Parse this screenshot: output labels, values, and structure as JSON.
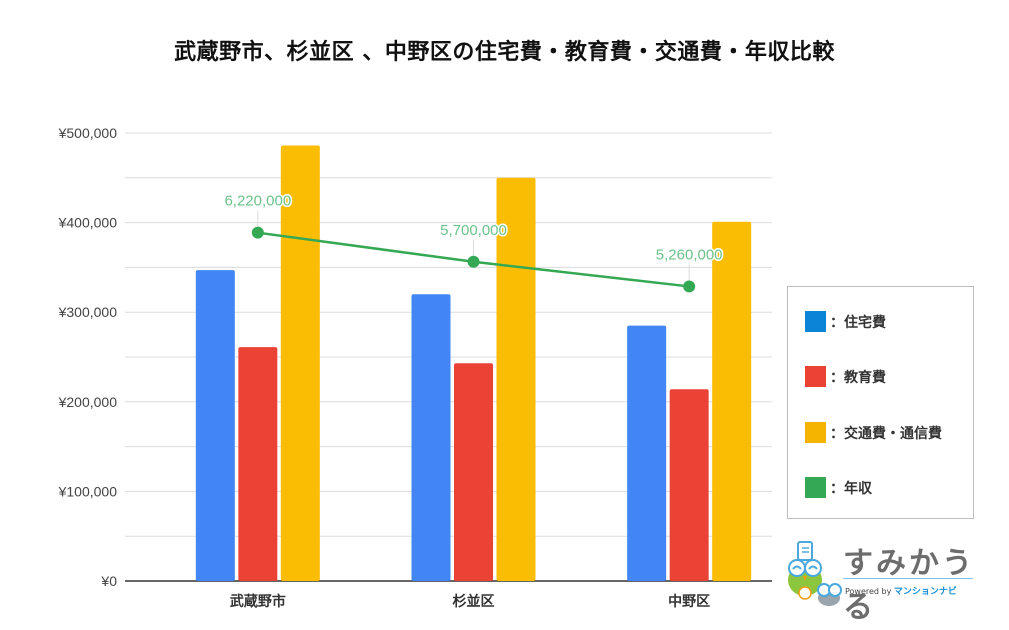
{
  "title": "武蔵野市、杉並区 、中野区の住宅費・教育費・交通費・年収比較",
  "chart_data": {
    "type": "bar",
    "title": "武蔵野市、杉並区 、中野区の住宅費・教育費・交通費・年収比較",
    "xlabel": "",
    "ylabel": "",
    "categories": [
      "武蔵野市",
      "杉並区",
      "中野区"
    ],
    "ylim": [
      0,
      500000
    ],
    "yticks": [
      "¥0",
      "¥100,000",
      "¥200,000",
      "¥300,000",
      "¥400,000",
      "¥500,000"
    ],
    "grid": true,
    "legend_position": "right",
    "series": [
      {
        "name": "住宅費",
        "type": "bar",
        "color": "#4285f4",
        "values": [
          347000,
          320000,
          285000
        ]
      },
      {
        "name": "教育費",
        "type": "bar",
        "color": "#ea4335",
        "values": [
          261000,
          243000,
          214000
        ]
      },
      {
        "name": "交通費・通信費",
        "type": "bar",
        "color": "#fbbc04",
        "values": [
          486000,
          450000,
          401000
        ]
      },
      {
        "name": "年収",
        "type": "line",
        "color": "#34a853",
        "values": [
          388750,
          356250,
          328750
        ],
        "data_labels": [
          "6,220,000",
          "5,700,000",
          "5,260,000"
        ]
      }
    ]
  },
  "legend": {
    "items": [
      {
        "label": "：住宅費",
        "color": "#0a84d6"
      },
      {
        "label": "：教育費",
        "color": "#ea4335"
      },
      {
        "label": "：交通費・通信費",
        "color": "#f4b400"
      },
      {
        "label": "：年収",
        "color": "#34a853"
      }
    ]
  },
  "logo": {
    "name": "すみかうる",
    "powered_prefix": "Powered by ",
    "powered_brand": "マンションナビ"
  }
}
